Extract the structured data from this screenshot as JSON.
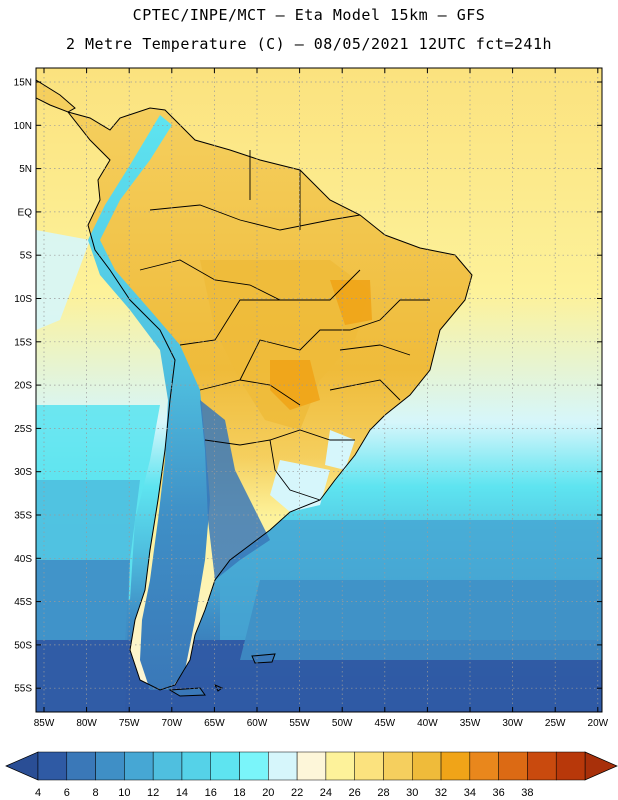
{
  "header": {
    "line1": "CPTEC/INPE/MCT –  Eta Model 15km – GFS",
    "line2": "2 Metre Temperature (C) – 08/05/2021 12UTC fct=241h"
  },
  "axes": {
    "lat_labels": [
      "15N",
      "10N",
      "5N",
      "EQ",
      "5S",
      "10S",
      "15S",
      "20S",
      "25S",
      "30S",
      "35S",
      "40S",
      "45S",
      "50S",
      "55S"
    ],
    "lon_labels": [
      "85W",
      "80W",
      "75W",
      "70W",
      "65W",
      "60W",
      "55W",
      "50W",
      "45W",
      "40W",
      "35W",
      "30W",
      "25W",
      "20W"
    ]
  },
  "colorbar": {
    "labels": [
      "4",
      "6",
      "8",
      "10",
      "12",
      "14",
      "16",
      "18",
      "20",
      "22",
      "24",
      "26",
      "28",
      "30",
      "32",
      "34",
      "36",
      "38"
    ],
    "colors": [
      "#2f5aa4",
      "#3a78b8",
      "#3f8fc6",
      "#46a7d4",
      "#4fbfdf",
      "#55d2e8",
      "#5ee4f0",
      "#7af5fa",
      "#d6f6fb",
      "#fdf6d9",
      "#fdf29a",
      "#fbe27e",
      "#f5cf5e",
      "#efbb3a",
      "#f0a418",
      "#e9871c",
      "#dc6a14",
      "#c94a0e",
      "#b8380a"
    ],
    "left_color": "#2a4e95",
    "right_color": "#a8300a"
  },
  "map": {
    "ocean_colors": [
      "#fbe27e",
      "#fdf29a",
      "#d6f6fb",
      "#5ee4f0",
      "#4fbfdf",
      "#3f8fc6",
      "#3a78b8",
      "#2f5aa4"
    ],
    "land_colors": [
      "#f5cf5e",
      "#efbb3a",
      "#5ee4f0",
      "#4fbfdf",
      "#3f8fc6",
      "#3a78b8"
    ]
  }
}
